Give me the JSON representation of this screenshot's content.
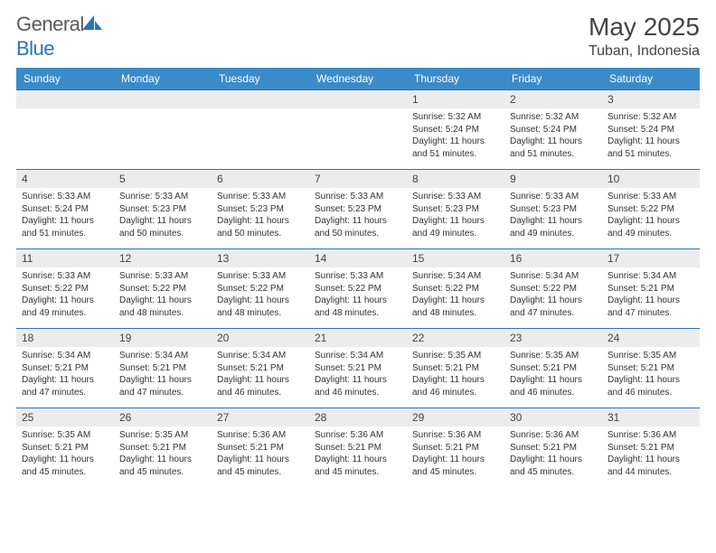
{
  "logo": {
    "text_gray": "General",
    "text_blue": "Blue"
  },
  "title": "May 2025",
  "location": "Tuban, Indonesia",
  "colors": {
    "header_bg": "#3b8bc9",
    "header_text": "#ffffff",
    "border": "#2a74b8",
    "daynum_bg": "#ececec",
    "body_text": "#333333",
    "logo_gray": "#5a5a5a",
    "logo_blue": "#2a74b8"
  },
  "day_headers": [
    "Sunday",
    "Monday",
    "Tuesday",
    "Wednesday",
    "Thursday",
    "Friday",
    "Saturday"
  ],
  "weeks": [
    [
      {
        "n": "",
        "lines": []
      },
      {
        "n": "",
        "lines": []
      },
      {
        "n": "",
        "lines": []
      },
      {
        "n": "",
        "lines": []
      },
      {
        "n": "1",
        "lines": [
          "Sunrise: 5:32 AM",
          "Sunset: 5:24 PM",
          "Daylight: 11 hours",
          "and 51 minutes."
        ]
      },
      {
        "n": "2",
        "lines": [
          "Sunrise: 5:32 AM",
          "Sunset: 5:24 PM",
          "Daylight: 11 hours",
          "and 51 minutes."
        ]
      },
      {
        "n": "3",
        "lines": [
          "Sunrise: 5:32 AM",
          "Sunset: 5:24 PM",
          "Daylight: 11 hours",
          "and 51 minutes."
        ]
      }
    ],
    [
      {
        "n": "4",
        "lines": [
          "Sunrise: 5:33 AM",
          "Sunset: 5:24 PM",
          "Daylight: 11 hours",
          "and 51 minutes."
        ]
      },
      {
        "n": "5",
        "lines": [
          "Sunrise: 5:33 AM",
          "Sunset: 5:23 PM",
          "Daylight: 11 hours",
          "and 50 minutes."
        ]
      },
      {
        "n": "6",
        "lines": [
          "Sunrise: 5:33 AM",
          "Sunset: 5:23 PM",
          "Daylight: 11 hours",
          "and 50 minutes."
        ]
      },
      {
        "n": "7",
        "lines": [
          "Sunrise: 5:33 AM",
          "Sunset: 5:23 PM",
          "Daylight: 11 hours",
          "and 50 minutes."
        ]
      },
      {
        "n": "8",
        "lines": [
          "Sunrise: 5:33 AM",
          "Sunset: 5:23 PM",
          "Daylight: 11 hours",
          "and 49 minutes."
        ]
      },
      {
        "n": "9",
        "lines": [
          "Sunrise: 5:33 AM",
          "Sunset: 5:23 PM",
          "Daylight: 11 hours",
          "and 49 minutes."
        ]
      },
      {
        "n": "10",
        "lines": [
          "Sunrise: 5:33 AM",
          "Sunset: 5:22 PM",
          "Daylight: 11 hours",
          "and 49 minutes."
        ]
      }
    ],
    [
      {
        "n": "11",
        "lines": [
          "Sunrise: 5:33 AM",
          "Sunset: 5:22 PM",
          "Daylight: 11 hours",
          "and 49 minutes."
        ]
      },
      {
        "n": "12",
        "lines": [
          "Sunrise: 5:33 AM",
          "Sunset: 5:22 PM",
          "Daylight: 11 hours",
          "and 48 minutes."
        ]
      },
      {
        "n": "13",
        "lines": [
          "Sunrise: 5:33 AM",
          "Sunset: 5:22 PM",
          "Daylight: 11 hours",
          "and 48 minutes."
        ]
      },
      {
        "n": "14",
        "lines": [
          "Sunrise: 5:33 AM",
          "Sunset: 5:22 PM",
          "Daylight: 11 hours",
          "and 48 minutes."
        ]
      },
      {
        "n": "15",
        "lines": [
          "Sunrise: 5:34 AM",
          "Sunset: 5:22 PM",
          "Daylight: 11 hours",
          "and 48 minutes."
        ]
      },
      {
        "n": "16",
        "lines": [
          "Sunrise: 5:34 AM",
          "Sunset: 5:22 PM",
          "Daylight: 11 hours",
          "and 47 minutes."
        ]
      },
      {
        "n": "17",
        "lines": [
          "Sunrise: 5:34 AM",
          "Sunset: 5:21 PM",
          "Daylight: 11 hours",
          "and 47 minutes."
        ]
      }
    ],
    [
      {
        "n": "18",
        "lines": [
          "Sunrise: 5:34 AM",
          "Sunset: 5:21 PM",
          "Daylight: 11 hours",
          "and 47 minutes."
        ]
      },
      {
        "n": "19",
        "lines": [
          "Sunrise: 5:34 AM",
          "Sunset: 5:21 PM",
          "Daylight: 11 hours",
          "and 47 minutes."
        ]
      },
      {
        "n": "20",
        "lines": [
          "Sunrise: 5:34 AM",
          "Sunset: 5:21 PM",
          "Daylight: 11 hours",
          "and 46 minutes."
        ]
      },
      {
        "n": "21",
        "lines": [
          "Sunrise: 5:34 AM",
          "Sunset: 5:21 PM",
          "Daylight: 11 hours",
          "and 46 minutes."
        ]
      },
      {
        "n": "22",
        "lines": [
          "Sunrise: 5:35 AM",
          "Sunset: 5:21 PM",
          "Daylight: 11 hours",
          "and 46 minutes."
        ]
      },
      {
        "n": "23",
        "lines": [
          "Sunrise: 5:35 AM",
          "Sunset: 5:21 PM",
          "Daylight: 11 hours",
          "and 46 minutes."
        ]
      },
      {
        "n": "24",
        "lines": [
          "Sunrise: 5:35 AM",
          "Sunset: 5:21 PM",
          "Daylight: 11 hours",
          "and 46 minutes."
        ]
      }
    ],
    [
      {
        "n": "25",
        "lines": [
          "Sunrise: 5:35 AM",
          "Sunset: 5:21 PM",
          "Daylight: 11 hours",
          "and 45 minutes."
        ]
      },
      {
        "n": "26",
        "lines": [
          "Sunrise: 5:35 AM",
          "Sunset: 5:21 PM",
          "Daylight: 11 hours",
          "and 45 minutes."
        ]
      },
      {
        "n": "27",
        "lines": [
          "Sunrise: 5:36 AM",
          "Sunset: 5:21 PM",
          "Daylight: 11 hours",
          "and 45 minutes."
        ]
      },
      {
        "n": "28",
        "lines": [
          "Sunrise: 5:36 AM",
          "Sunset: 5:21 PM",
          "Daylight: 11 hours",
          "and 45 minutes."
        ]
      },
      {
        "n": "29",
        "lines": [
          "Sunrise: 5:36 AM",
          "Sunset: 5:21 PM",
          "Daylight: 11 hours",
          "and 45 minutes."
        ]
      },
      {
        "n": "30",
        "lines": [
          "Sunrise: 5:36 AM",
          "Sunset: 5:21 PM",
          "Daylight: 11 hours",
          "and 45 minutes."
        ]
      },
      {
        "n": "31",
        "lines": [
          "Sunrise: 5:36 AM",
          "Sunset: 5:21 PM",
          "Daylight: 11 hours",
          "and 44 minutes."
        ]
      }
    ]
  ]
}
